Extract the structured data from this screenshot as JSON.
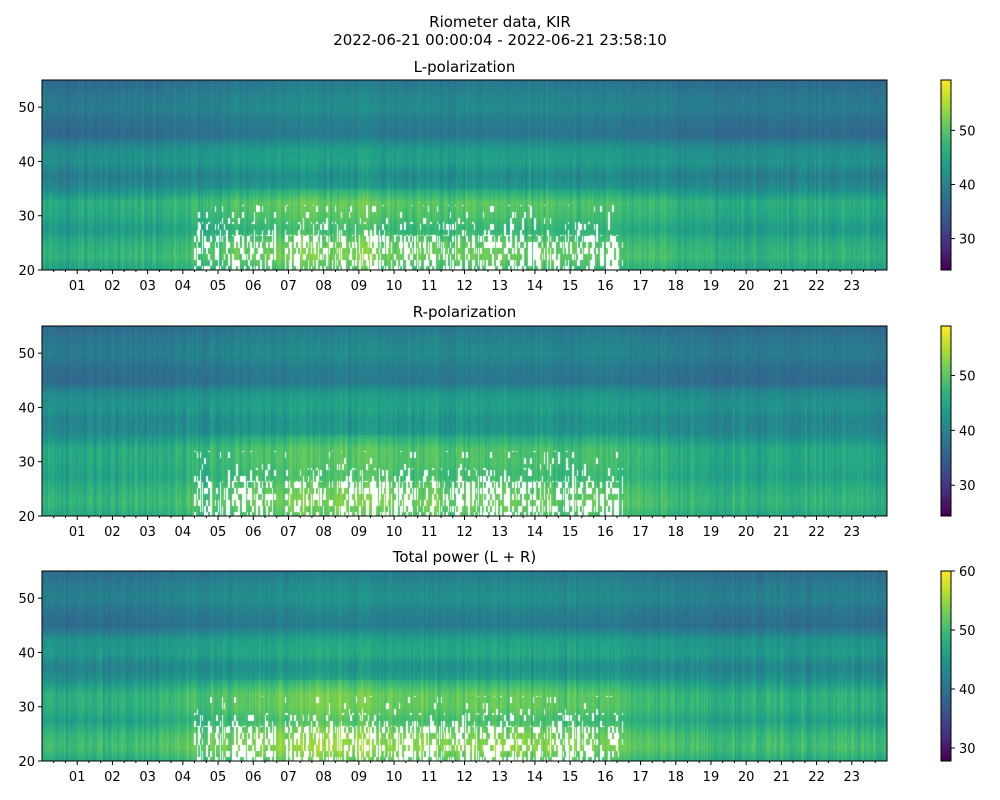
{
  "figure": {
    "title_line1": "Riometer data, KIR",
    "title_line2": "2022-06-21 00:00:04 - 2022-06-21 23:58:10"
  },
  "chart_data": [
    {
      "type": "heatmap",
      "title": "L-polarization",
      "x_unit": "hour",
      "xlim": [
        0,
        24
      ],
      "ylim": [
        20,
        55
      ],
      "xticks": [
        "01",
        "02",
        "03",
        "04",
        "05",
        "06",
        "07",
        "08",
        "09",
        "10",
        "11",
        "12",
        "13",
        "14",
        "15",
        "16",
        "17",
        "18",
        "19",
        "20",
        "21",
        "22",
        "23"
      ],
      "yticks": [
        20,
        30,
        40,
        50
      ],
      "colorbar": {
        "cmap": "viridis",
        "range": [
          24.2,
          59.3
        ],
        "ticks": [
          30,
          40,
          50
        ]
      },
      "freq_bands": [
        20,
        22.5,
        25,
        27.5,
        30,
        32.5,
        35,
        37.5,
        40,
        42.5,
        45,
        47.5,
        50,
        52.5,
        55
      ],
      "band_level": [
        44,
        47,
        46,
        43,
        45,
        46,
        41,
        39,
        42,
        41,
        36,
        37,
        39,
        38,
        36
      ],
      "hourly_offset": [
        0,
        0,
        0.5,
        1,
        2,
        3,
        3.5,
        4,
        4.5,
        4,
        3.5,
        3.5,
        3.5,
        3.5,
        3,
        3,
        2.5,
        1.5,
        0.5,
        0,
        0,
        0,
        0,
        0
      ],
      "saturated_region": {
        "hours": [
          4.3,
          16.5
        ],
        "freq": [
          20,
          32
        ]
      }
    },
    {
      "type": "heatmap",
      "title": "R-polarization",
      "x_unit": "hour",
      "xlim": [
        0,
        24
      ],
      "ylim": [
        20,
        55
      ],
      "xticks": [
        "01",
        "02",
        "03",
        "04",
        "05",
        "06",
        "07",
        "08",
        "09",
        "10",
        "11",
        "12",
        "13",
        "14",
        "15",
        "16",
        "17",
        "18",
        "19",
        "20",
        "21",
        "22",
        "23"
      ],
      "yticks": [
        20,
        30,
        40,
        50
      ],
      "colorbar": {
        "cmap": "viridis",
        "range": [
          24.4,
          59.0
        ],
        "ticks": [
          30,
          40,
          50
        ]
      },
      "freq_bands": [
        20,
        22.5,
        25,
        27.5,
        30,
        32.5,
        35,
        37.5,
        40,
        42.5,
        45,
        47.5,
        50,
        52.5,
        55
      ],
      "band_level": [
        45,
        47,
        46,
        44,
        45,
        45,
        41,
        40,
        42,
        41,
        36,
        37,
        39,
        38,
        36
      ],
      "hourly_offset": [
        0,
        0,
        0.5,
        1,
        2,
        3,
        3.5,
        4,
        4.5,
        4,
        3.5,
        3.5,
        3.5,
        3.5,
        3,
        3,
        2.5,
        1.5,
        0.5,
        0,
        0,
        0,
        0,
        0
      ],
      "saturated_region": {
        "hours": [
          4.3,
          16.5
        ],
        "freq": [
          20,
          32
        ]
      }
    },
    {
      "type": "heatmap",
      "title": "Total power (L + R)",
      "x_unit": "hour",
      "xlim": [
        0,
        24
      ],
      "ylim": [
        20,
        55
      ],
      "xticks": [
        "01",
        "02",
        "03",
        "04",
        "05",
        "06",
        "07",
        "08",
        "09",
        "10",
        "11",
        "12",
        "13",
        "14",
        "15",
        "16",
        "17",
        "18",
        "19",
        "20",
        "21",
        "22",
        "23"
      ],
      "yticks": [
        20,
        30,
        40,
        50
      ],
      "colorbar": {
        "cmap": "viridis",
        "range": [
          27.8,
          60
        ],
        "ticks": [
          30,
          40,
          50,
          60
        ]
      },
      "freq_bands": [
        20,
        22.5,
        25,
        27.5,
        30,
        32.5,
        35,
        37.5,
        40,
        42.5,
        45,
        47.5,
        50,
        52.5,
        55
      ],
      "band_level": [
        47,
        50,
        49,
        46,
        48,
        48,
        44,
        42,
        45,
        44,
        39,
        40,
        42,
        41,
        39
      ],
      "hourly_offset": [
        0,
        0,
        0.5,
        1,
        2,
        3,
        3.5,
        4,
        4.5,
        4,
        3.5,
        3.5,
        3.5,
        3.5,
        3,
        3,
        2.5,
        1.5,
        0.5,
        0,
        0,
        0,
        0,
        0
      ],
      "saturated_region": {
        "hours": [
          4.3,
          16.5
        ],
        "freq": [
          20,
          32
        ]
      }
    }
  ]
}
